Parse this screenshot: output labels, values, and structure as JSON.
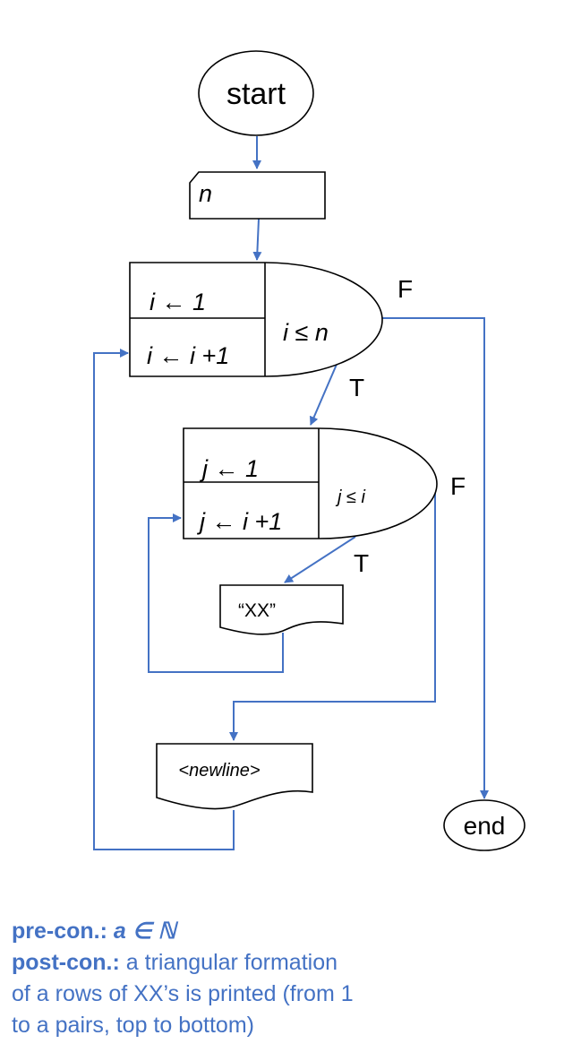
{
  "flowchart": {
    "start_label": "start",
    "input_label": "n",
    "outer_loop": {
      "init": "i ← 1",
      "step": "i ← i +1",
      "condition": "i ≤ n"
    },
    "inner_loop": {
      "init": "j ← 1",
      "step": "j ← i +1",
      "condition": "j ≤ i"
    },
    "print_xx": "“XX”",
    "print_newline": "<newline>",
    "end_label": "end",
    "outer_false": "F",
    "outer_true": "T",
    "inner_false": "F",
    "inner_true": "T"
  },
  "notes": {
    "pre_label": "pre-con.:",
    "pre_value": "a ∈ ℕ",
    "post_label": "post-con.:",
    "post_line1_rest": "a triangular formation",
    "post_line2": "of a rows of XX’s is printed (from 1",
    "post_line3": "to a pairs, top to bottom)"
  },
  "colors": {
    "connector": "#4472c4",
    "shape_outline": "#000000",
    "note_text": "#4472c4"
  }
}
